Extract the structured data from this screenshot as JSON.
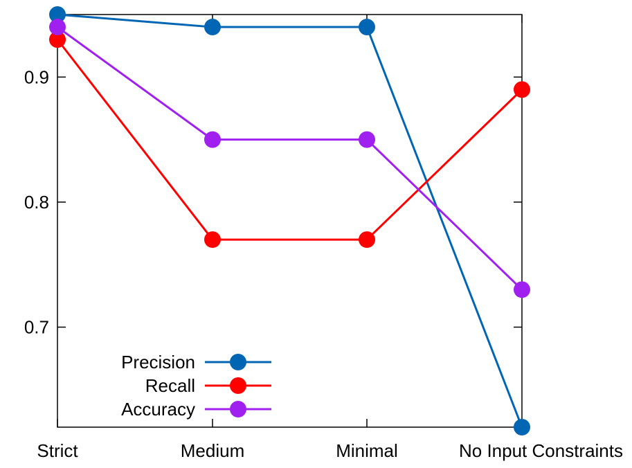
{
  "chart_data": {
    "type": "line",
    "title": "",
    "xlabel": "",
    "ylabel": "",
    "categories": [
      "Strict",
      "Medium",
      "Minimal",
      "No Input Constraints"
    ],
    "ylim": [
      0.62,
      0.95
    ],
    "yticks": [
      0.7,
      0.8,
      0.9
    ],
    "ytick_labels": [
      "0.7",
      "0.8",
      "0.9"
    ],
    "grid": false,
    "legend": {
      "position": "bottom-left"
    },
    "series": [
      {
        "name": "Precision",
        "color": "#0066b3",
        "values": [
          0.95,
          0.94,
          0.94,
          0.62
        ]
      },
      {
        "name": "Recall",
        "color": "#ff0000",
        "values": [
          0.93,
          0.77,
          0.77,
          0.89
        ]
      },
      {
        "name": "Accuracy",
        "color": "#a020f0",
        "values": [
          0.94,
          0.85,
          0.85,
          0.73
        ]
      }
    ]
  }
}
